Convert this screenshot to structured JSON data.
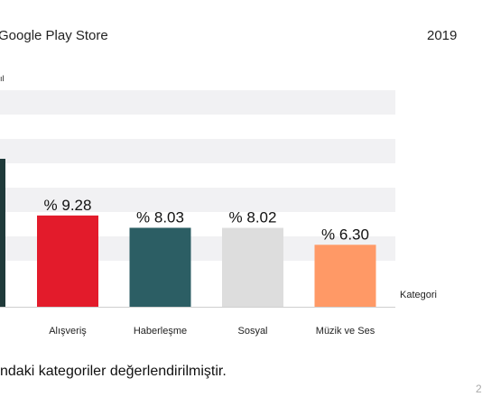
{
  "header": {
    "title": "Google Play Store",
    "year": "2019"
  },
  "footnote": "ndaki kategoriler değerlendirilmiştir.",
  "page_number": "2",
  "chart_data": {
    "type": "bar",
    "title": "",
    "ylabel_fragment": "ıl",
    "xlabel": "Kategori",
    "categories": [
      "Alışveriş",
      "Haberleşme",
      "Sosyal",
      "Müzik ve Ses"
    ],
    "values": [
      9.28,
      8.03,
      8.02,
      6.3
    ],
    "data_labels": [
      "% 9.28",
      "% 8.03",
      "% 8.02",
      "% 6.30"
    ],
    "colors": [
      "#e31b2b",
      "#2c5e64",
      "#dddddd",
      "#ff9966"
    ],
    "cropped_left_bar": {
      "color": "#1f3a3a"
    },
    "ylim": [
      0,
      16
    ],
    "grid": true,
    "grid_style": "alternating horizontal bands"
  }
}
